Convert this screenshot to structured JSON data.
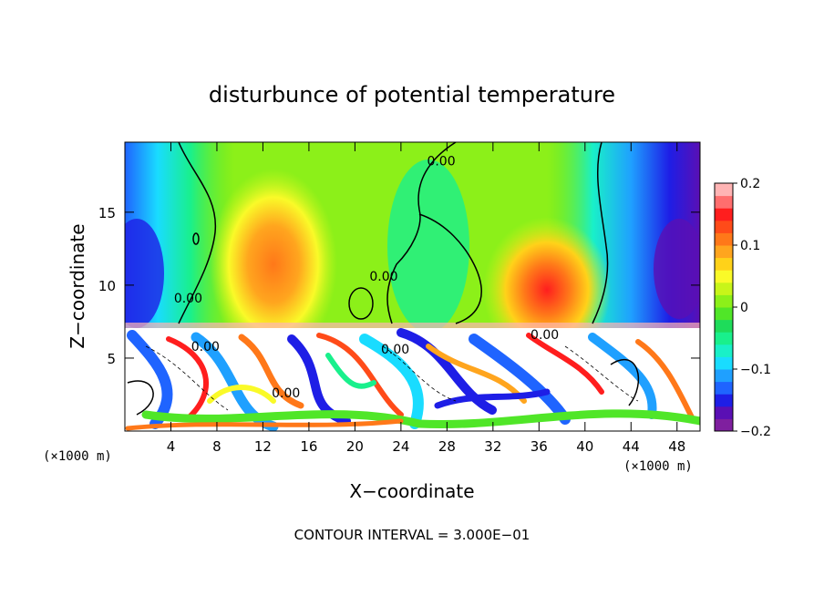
{
  "chart_data": {
    "type": "heatmap",
    "title": "disturbunce of potential temperature",
    "xlabel": "X−coordinate",
    "ylabel": "Z−coordinate",
    "x_unit": "(×1000 m)",
    "z_unit": "(×1000 m)",
    "x_ticks": [
      4,
      8,
      12,
      16,
      20,
      24,
      28,
      32,
      36,
      40,
      44,
      48
    ],
    "x_tick_labels": [
      "4",
      "8",
      "12",
      "16",
      "20",
      "24",
      "28",
      "32",
      "36",
      "40",
      "44",
      "48"
    ],
    "z_ticks": [
      5,
      10,
      15
    ],
    "z_tick_labels": [
      "5",
      "10",
      "15"
    ],
    "xlim": [
      0,
      50
    ],
    "zlim": [
      0,
      19.8
    ],
    "colorbar": {
      "range": [
        -0.2,
        0.2
      ],
      "tick_values": [
        0.2,
        0.1,
        0,
        -0.1,
        -0.2
      ],
      "tick_labels": [
        "0.2",
        "0.1",
        "0",
        "−0.1",
        "−0.2"
      ],
      "colors": [
        "#7f1f9f",
        "#5a0fb4",
        "#1e1ee6",
        "#1f64ff",
        "#1fa0ff",
        "#19dcff",
        "#19f0c8",
        "#19f08c",
        "#1edc5a",
        "#50e628",
        "#8cf019",
        "#c8f519",
        "#fafa28",
        "#ffd219",
        "#ffa51e",
        "#ff7819",
        "#ff4b19",
        "#ff1e1e",
        "#ff6e6e",
        "#ffb4b4"
      ]
    },
    "contour_labels": [
      {
        "text": "0.00",
        "x": 27.5,
        "z": 18.2
      },
      {
        "text": "0.00",
        "x": 22.5,
        "z": 10.3
      },
      {
        "text": "0.00",
        "x": 5.5,
        "z": 8.8
      },
      {
        "text": "0.00",
        "x": 7.0,
        "z": 5.5
      },
      {
        "text": "0.00",
        "x": 23.5,
        "z": 5.3
      },
      {
        "text": "0.00",
        "x": 36.5,
        "z": 6.3
      },
      {
        "text": "0.00",
        "x": 14.0,
        "z": 2.3
      }
    ],
    "footer": "CONTOUR INTERVAL = 3.000E−01"
  }
}
